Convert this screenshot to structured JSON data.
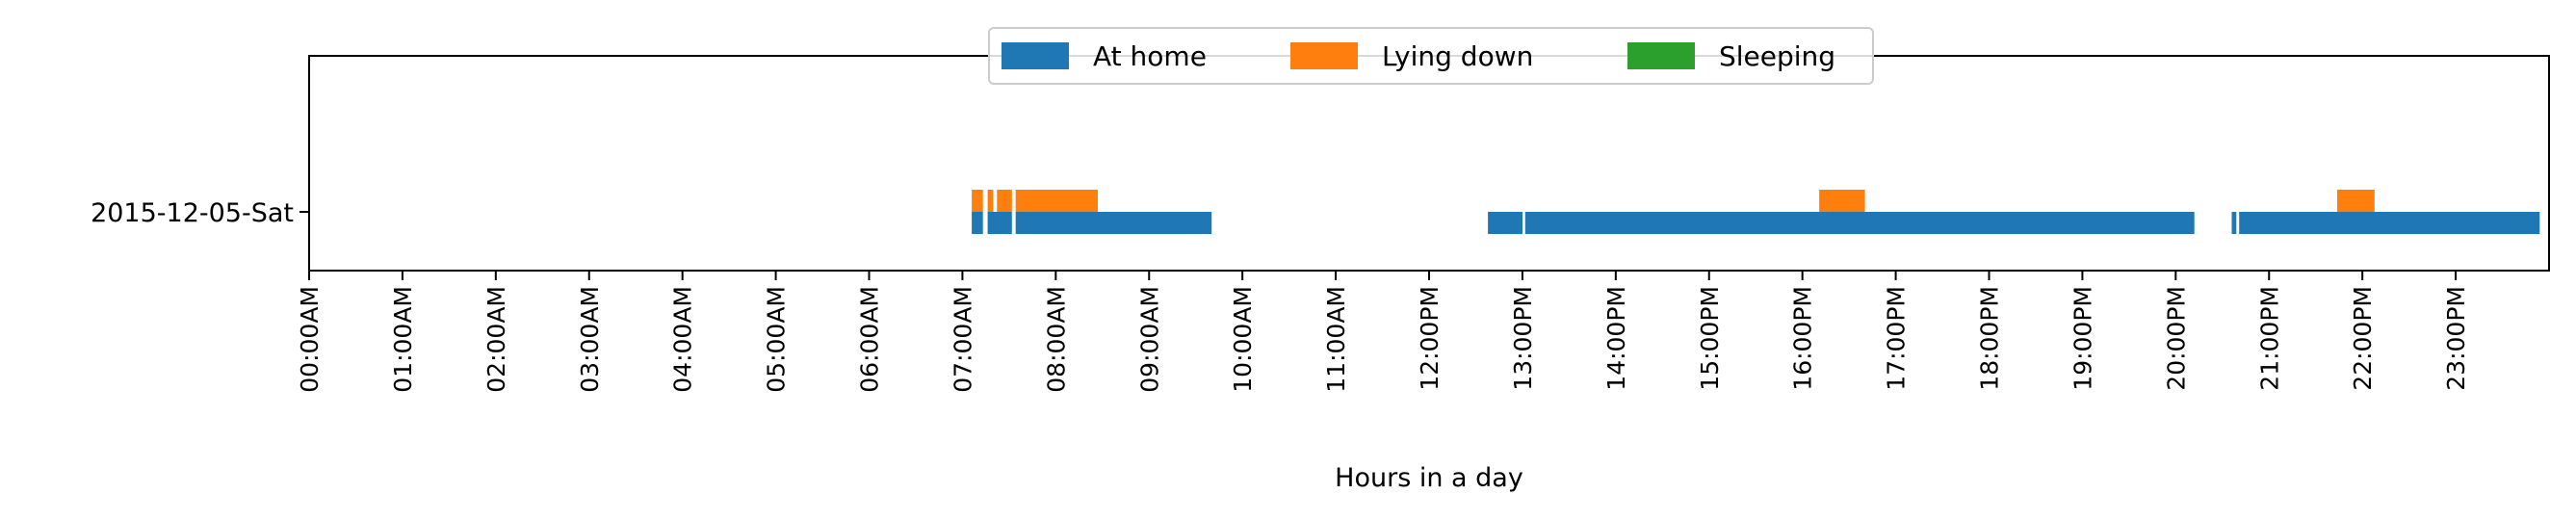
{
  "chart_data": {
    "type": "timeline",
    "xlabel": "Hours in a day",
    "xlim": [
      0,
      24
    ],
    "x_ticks": [
      {
        "hour": 0,
        "label": "00:00AM"
      },
      {
        "hour": 1,
        "label": "01:00AM"
      },
      {
        "hour": 2,
        "label": "02:00AM"
      },
      {
        "hour": 3,
        "label": "03:00AM"
      },
      {
        "hour": 4,
        "label": "04:00AM"
      },
      {
        "hour": 5,
        "label": "05:00AM"
      },
      {
        "hour": 6,
        "label": "06:00AM"
      },
      {
        "hour": 7,
        "label": "07:00AM"
      },
      {
        "hour": 8,
        "label": "08:00AM"
      },
      {
        "hour": 9,
        "label": "09:00AM"
      },
      {
        "hour": 10,
        "label": "10:00AM"
      },
      {
        "hour": 11,
        "label": "11:00AM"
      },
      {
        "hour": 12,
        "label": "12:00PM"
      },
      {
        "hour": 13,
        "label": "13:00PM"
      },
      {
        "hour": 14,
        "label": "14:00PM"
      },
      {
        "hour": 15,
        "label": "15:00PM"
      },
      {
        "hour": 16,
        "label": "16:00PM"
      },
      {
        "hour": 17,
        "label": "17:00PM"
      },
      {
        "hour": 18,
        "label": "18:00PM"
      },
      {
        "hour": 19,
        "label": "19:00PM"
      },
      {
        "hour": 20,
        "label": "20:00PM"
      },
      {
        "hour": 21,
        "label": "21:00PM"
      },
      {
        "hour": 22,
        "label": "22:00PM"
      },
      {
        "hour": 23,
        "label": "23:00PM"
      }
    ],
    "y_categories": [
      "2015-12-05-Sat"
    ],
    "legend": {
      "placement": "top-center",
      "entries": [
        {
          "name": "At home",
          "color": "#1f77b4"
        },
        {
          "name": "Lying down",
          "color": "#ff7f0e"
        },
        {
          "name": "Sleeping",
          "color": "#2ca02c"
        }
      ]
    },
    "series": [
      {
        "name": "At home",
        "color": "#1f77b4",
        "intervals": [
          [
            7.1,
            7.22
          ],
          [
            7.27,
            7.53
          ],
          [
            7.57,
            9.67
          ],
          [
            12.63,
            13.0
          ],
          [
            13.03,
            20.2
          ],
          [
            20.6,
            20.65
          ],
          [
            20.68,
            23.9
          ]
        ]
      },
      {
        "name": "Lying down",
        "color": "#ff7f0e",
        "intervals": [
          [
            7.1,
            7.22
          ],
          [
            7.27,
            7.33
          ],
          [
            7.37,
            7.53
          ],
          [
            7.57,
            8.45
          ],
          [
            16.18,
            16.67
          ],
          [
            21.73,
            22.13
          ]
        ]
      },
      {
        "name": "Sleeping",
        "color": "#2ca02c",
        "intervals": []
      }
    ]
  }
}
